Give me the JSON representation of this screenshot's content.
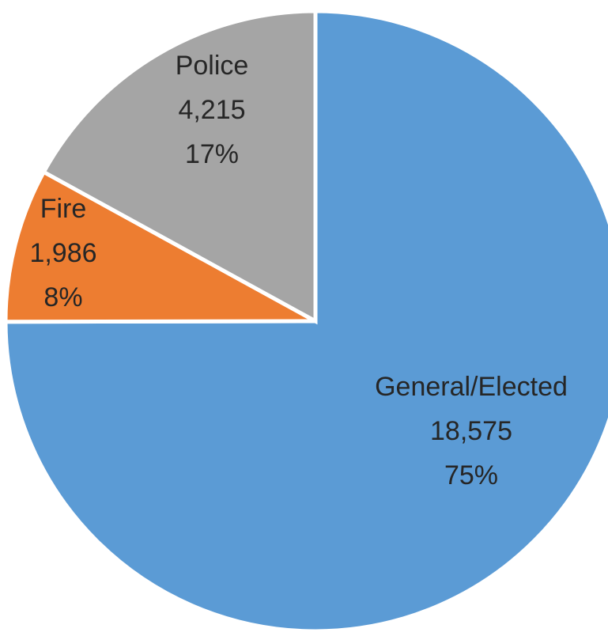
{
  "chart_data": {
    "type": "pie",
    "title": "",
    "slices": [
      {
        "label": "General/Elected",
        "value": 18575,
        "value_text": "18,575",
        "percent_text": "75%",
        "color": "#5b9bd5"
      },
      {
        "label": "Fire",
        "value": 1986,
        "value_text": "1,986",
        "percent_text": "8%",
        "color": "#ed7d31"
      },
      {
        "label": "Police",
        "value": 4215,
        "value_text": "4,215",
        "percent_text": "17%",
        "color": "#a5a5a5"
      }
    ],
    "legend": "none",
    "start_angle": "12 o'clock, clockwise"
  }
}
